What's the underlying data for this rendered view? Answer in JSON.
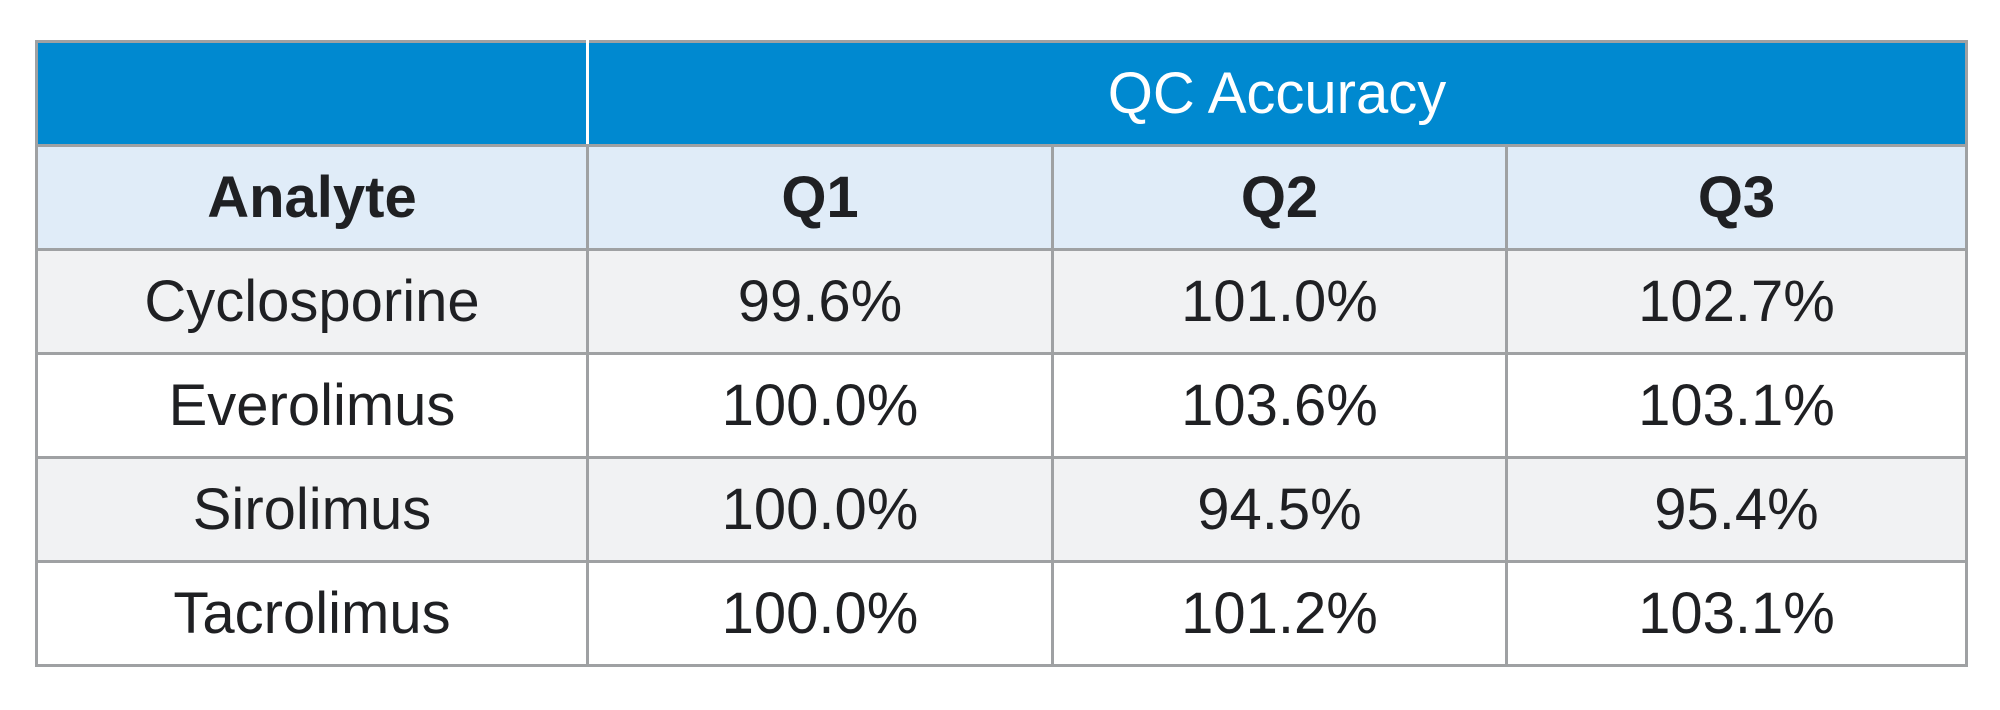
{
  "chart_data": {
    "type": "table",
    "group_header": "QC Accuracy",
    "columns": [
      "Analyte",
      "Q1",
      "Q2",
      "Q3"
    ],
    "rows": [
      [
        "Cyclosporine",
        "99.6%",
        "101.0%",
        "102.7%"
      ],
      [
        "Everolimus",
        "100.0%",
        "103.6%",
        "103.1%"
      ],
      [
        "Sirolimus",
        "100.0%",
        "94.5%",
        "95.4%"
      ],
      [
        "Tacrolimus",
        "100.0%",
        "101.2%",
        "103.1%"
      ]
    ],
    "colors": {
      "group_header_bg": "#0089d0",
      "column_header_bg": "#e0ecf8",
      "row_alt_bg": "#f1f2f3",
      "border": "#9fa1a3"
    }
  }
}
